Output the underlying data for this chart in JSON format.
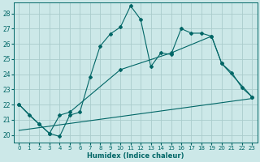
{
  "xlabel": "Humidex (Indice chaleur)",
  "background_color": "#cce8e8",
  "grid_color": "#aacccc",
  "line_color": "#006666",
  "xlim": [
    -0.5,
    23.5
  ],
  "ylim": [
    19.5,
    28.7
  ],
  "yticks": [
    20,
    21,
    22,
    23,
    24,
    25,
    26,
    27,
    28
  ],
  "xticks": [
    0,
    1,
    2,
    3,
    4,
    5,
    6,
    7,
    8,
    9,
    10,
    11,
    12,
    13,
    14,
    15,
    16,
    17,
    18,
    19,
    20,
    21,
    22,
    23
  ],
  "line1_x": [
    0,
    1,
    2,
    3,
    4,
    5,
    6,
    7,
    8,
    9,
    10,
    11,
    12,
    13,
    14,
    15,
    16,
    17,
    18,
    19,
    20,
    21,
    22,
    23
  ],
  "line1_y": [
    22.0,
    21.3,
    20.7,
    20.1,
    19.9,
    21.3,
    21.5,
    23.8,
    25.85,
    26.65,
    27.1,
    28.5,
    27.6,
    24.5,
    25.4,
    25.3,
    27.0,
    26.7,
    26.7,
    26.5,
    24.7,
    24.1,
    23.1,
    22.5
  ],
  "line2_x": [
    0,
    2,
    3,
    4,
    5,
    10,
    15,
    19,
    20,
    23
  ],
  "line2_y": [
    22.0,
    20.7,
    20.1,
    21.3,
    21.5,
    24.3,
    25.4,
    26.5,
    24.7,
    22.5
  ],
  "line3_x": [
    0,
    23
  ],
  "line3_y": [
    20.3,
    22.4
  ]
}
